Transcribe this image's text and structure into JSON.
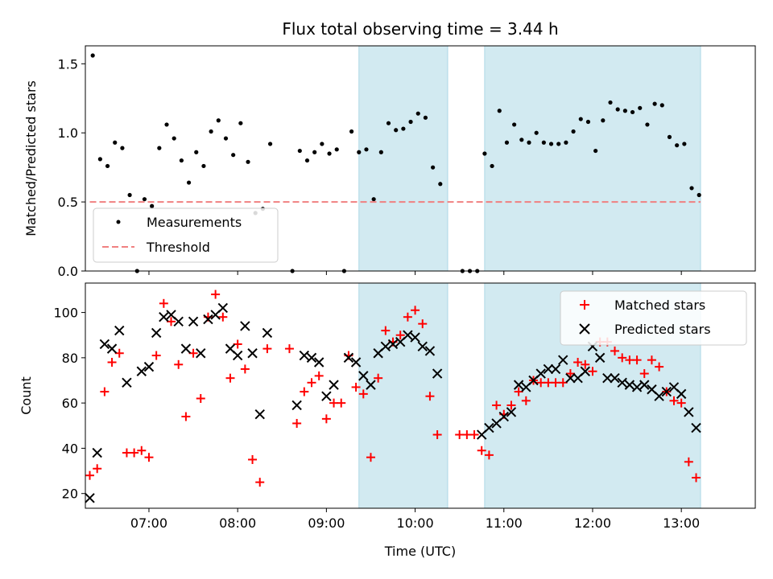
{
  "chart_data": [
    {
      "type": "scatter",
      "title": "Flux total observing time = 3.44 h",
      "ylabel": "Matched/Predicted stars",
      "ylim": [
        0,
        1.63
      ],
      "yticks": [
        "0.0",
        "0.5",
        "1.0",
        "1.5"
      ],
      "xlim": [
        "06:17",
        "13:50"
      ],
      "xticks": [
        "07:00",
        "08:00",
        "09:00",
        "10:00",
        "11:00",
        "12:00",
        "13:00"
      ],
      "shaded_intervals": [
        [
          "09:22",
          "10:22"
        ],
        [
          "10:47",
          "13:13"
        ]
      ],
      "shade_color": "#add8e6",
      "legend_position": "lower-left",
      "series": [
        {
          "name": "Measurements",
          "color": "#000000",
          "marker": "dot",
          "points": [
            [
              "06:22",
              1.56
            ],
            [
              "06:27",
              0.81
            ],
            [
              "06:32",
              0.76
            ],
            [
              "06:37",
              0.93
            ],
            [
              "06:42",
              0.89
            ],
            [
              "06:47",
              0.55
            ],
            [
              "06:52",
              0.0
            ],
            [
              "06:57",
              0.52
            ],
            [
              "07:02",
              0.47
            ],
            [
              "07:07",
              0.89
            ],
            [
              "07:12",
              1.06
            ],
            [
              "07:17",
              0.96
            ],
            [
              "07:22",
              0.8
            ],
            [
              "07:27",
              0.64
            ],
            [
              "07:32",
              0.86
            ],
            [
              "07:37",
              0.76
            ],
            [
              "07:42",
              1.01
            ],
            [
              "07:47",
              1.09
            ],
            [
              "07:52",
              0.96
            ],
            [
              "07:57",
              0.84
            ],
            [
              "08:02",
              1.07
            ],
            [
              "08:07",
              0.79
            ],
            [
              "08:12",
              0.42
            ],
            [
              "08:17",
              0.45
            ],
            [
              "08:22",
              0.92
            ],
            [
              "08:37",
              0.0
            ],
            [
              "08:42",
              0.87
            ],
            [
              "08:47",
              0.8
            ],
            [
              "08:52",
              0.86
            ],
            [
              "08:57",
              0.92
            ],
            [
              "09:02",
              0.85
            ],
            [
              "09:07",
              0.88
            ],
            [
              "09:12",
              0.0
            ],
            [
              "09:17",
              1.01
            ],
            [
              "09:22",
              0.86
            ],
            [
              "09:27",
              0.88
            ],
            [
              "09:32",
              0.52
            ],
            [
              "09:37",
              0.86
            ],
            [
              "09:42",
              1.07
            ],
            [
              "09:47",
              1.02
            ],
            [
              "09:52",
              1.03
            ],
            [
              "09:57",
              1.08
            ],
            [
              "10:02",
              1.14
            ],
            [
              "10:07",
              1.11
            ],
            [
              "10:12",
              0.75
            ],
            [
              "10:17",
              0.63
            ],
            [
              "10:32",
              0.0
            ],
            [
              "10:37",
              0.0
            ],
            [
              "10:42",
              0.0
            ],
            [
              "10:47",
              0.85
            ],
            [
              "10:52",
              0.76
            ],
            [
              "10:57",
              1.16
            ],
            [
              "11:02",
              0.93
            ],
            [
              "11:07",
              1.06
            ],
            [
              "11:12",
              0.95
            ],
            [
              "11:17",
              0.93
            ],
            [
              "11:22",
              1.0
            ],
            [
              "11:27",
              0.93
            ],
            [
              "11:32",
              0.92
            ],
            [
              "11:37",
              0.92
            ],
            [
              "11:42",
              0.93
            ],
            [
              "11:47",
              1.01
            ],
            [
              "11:52",
              1.1
            ],
            [
              "11:57",
              1.08
            ],
            [
              "12:02",
              0.87
            ],
            [
              "12:07",
              1.09
            ],
            [
              "12:12",
              1.22
            ],
            [
              "12:17",
              1.17
            ],
            [
              "12:22",
              1.16
            ],
            [
              "12:27",
              1.15
            ],
            [
              "12:32",
              1.18
            ],
            [
              "12:37",
              1.06
            ],
            [
              "12:42",
              1.21
            ],
            [
              "12:47",
              1.2
            ],
            [
              "12:52",
              0.97
            ],
            [
              "12:57",
              0.91
            ],
            [
              "13:02",
              0.92
            ],
            [
              "13:07",
              0.6
            ],
            [
              "13:12",
              0.55
            ]
          ]
        },
        {
          "name": "Threshold",
          "color": "#f08080",
          "style": "dashed",
          "points": [
            [
              "06:20",
              0.5
            ],
            [
              "13:13",
              0.5
            ]
          ]
        }
      ]
    },
    {
      "type": "scatter",
      "xlabel": "Time (UTC)",
      "ylabel": "Count",
      "ylim": [
        13.5,
        113
      ],
      "yticks": [
        "20",
        "40",
        "60",
        "80",
        "100"
      ],
      "xlim": [
        "06:17",
        "13:50"
      ],
      "xticks": [
        "07:00",
        "08:00",
        "09:00",
        "10:00",
        "11:00",
        "12:00",
        "13:00"
      ],
      "shaded_intervals": [
        [
          "09:22",
          "10:22"
        ],
        [
          "10:47",
          "13:13"
        ]
      ],
      "shade_color": "#add8e6",
      "legend_position": "upper-right",
      "series": [
        {
          "name": "Matched stars",
          "color": "#ff0000",
          "marker": "plus",
          "points": [
            [
              "06:20",
              28
            ],
            [
              "06:25",
              31
            ],
            [
              "06:30",
              65
            ],
            [
              "06:35",
              78
            ],
            [
              "06:40",
              82
            ],
            [
              "06:45",
              38
            ],
            [
              "06:50",
              38
            ],
            [
              "06:55",
              39
            ],
            [
              "07:00",
              36
            ],
            [
              "07:05",
              81
            ],
            [
              "07:10",
              104
            ],
            [
              "07:15",
              96
            ],
            [
              "07:20",
              77
            ],
            [
              "07:25",
              54
            ],
            [
              "07:30",
              82
            ],
            [
              "07:35",
              62
            ],
            [
              "07:40",
              98
            ],
            [
              "07:45",
              108
            ],
            [
              "07:50",
              98
            ],
            [
              "07:55",
              71
            ],
            [
              "08:00",
              86
            ],
            [
              "08:05",
              75
            ],
            [
              "08:10",
              35
            ],
            [
              "08:15",
              25
            ],
            [
              "08:20",
              84
            ],
            [
              "08:35",
              84
            ],
            [
              "08:40",
              51
            ],
            [
              "08:45",
              65
            ],
            [
              "08:50",
              69
            ],
            [
              "08:55",
              72
            ],
            [
              "09:00",
              53
            ],
            [
              "09:05",
              60
            ],
            [
              "09:10",
              60
            ],
            [
              "09:15",
              81
            ],
            [
              "09:20",
              67
            ],
            [
              "09:25",
              64
            ],
            [
              "09:30",
              36
            ],
            [
              "09:35",
              71
            ],
            [
              "09:40",
              92
            ],
            [
              "09:45",
              87
            ],
            [
              "09:50",
              90
            ],
            [
              "09:55",
              98
            ],
            [
              "10:00",
              101
            ],
            [
              "10:05",
              95
            ],
            [
              "10:10",
              63
            ],
            [
              "10:15",
              46
            ],
            [
              "10:30",
              46
            ],
            [
              "10:35",
              46
            ],
            [
              "10:40",
              46
            ],
            [
              "10:45",
              39
            ],
            [
              "10:50",
              37
            ],
            [
              "10:55",
              59
            ],
            [
              "11:00",
              55
            ],
            [
              "11:05",
              59
            ],
            [
              "11:10",
              65
            ],
            [
              "11:15",
              61
            ],
            [
              "11:20",
              70
            ],
            [
              "11:25",
              69
            ],
            [
              "11:30",
              69
            ],
            [
              "11:35",
              69
            ],
            [
              "11:40",
              69
            ],
            [
              "11:45",
              73
            ],
            [
              "11:50",
              78
            ],
            [
              "11:55",
              77
            ],
            [
              "12:00",
              74
            ],
            [
              "12:05",
              87
            ],
            [
              "12:10",
              87
            ],
            [
              "12:15",
              83
            ],
            [
              "12:20",
              80
            ],
            [
              "12:25",
              79
            ],
            [
              "12:30",
              79
            ],
            [
              "12:35",
              73
            ],
            [
              "12:40",
              79
            ],
            [
              "12:45",
              76
            ],
            [
              "12:50",
              65
            ],
            [
              "12:55",
              61
            ],
            [
              "13:00",
              60
            ],
            [
              "13:05",
              34
            ],
            [
              "13:10",
              27
            ]
          ]
        },
        {
          "name": "Predicted stars",
          "color": "#000000",
          "marker": "x",
          "points": [
            [
              "06:20",
              18
            ],
            [
              "06:25",
              38
            ],
            [
              "06:30",
              86
            ],
            [
              "06:35",
              84
            ],
            [
              "06:40",
              92
            ],
            [
              "06:45",
              69
            ],
            [
              "06:55",
              74
            ],
            [
              "07:00",
              76
            ],
            [
              "07:05",
              91
            ],
            [
              "07:10",
              98
            ],
            [
              "07:15",
              99
            ],
            [
              "07:20",
              96
            ],
            [
              "07:25",
              84
            ],
            [
              "07:30",
              96
            ],
            [
              "07:35",
              82
            ],
            [
              "07:40",
              97
            ],
            [
              "07:45",
              99
            ],
            [
              "07:50",
              102
            ],
            [
              "07:55",
              84
            ],
            [
              "08:00",
              81
            ],
            [
              "08:05",
              94
            ],
            [
              "08:10",
              82
            ],
            [
              "08:15",
              55
            ],
            [
              "08:20",
              91
            ],
            [
              "08:40",
              59
            ],
            [
              "08:45",
              81
            ],
            [
              "08:50",
              80
            ],
            [
              "08:55",
              78
            ],
            [
              "09:00",
              63
            ],
            [
              "09:05",
              68
            ],
            [
              "09:15",
              80
            ],
            [
              "09:20",
              78
            ],
            [
              "09:25",
              72
            ],
            [
              "09:30",
              68
            ],
            [
              "09:35",
              82
            ],
            [
              "09:40",
              85
            ],
            [
              "09:45",
              86
            ],
            [
              "09:50",
              87
            ],
            [
              "09:55",
              90
            ],
            [
              "10:00",
              89
            ],
            [
              "10:05",
              85
            ],
            [
              "10:10",
              83
            ],
            [
              "10:15",
              73
            ],
            [
              "10:45",
              46
            ],
            [
              "10:50",
              49
            ],
            [
              "10:55",
              51
            ],
            [
              "11:00",
              54
            ],
            [
              "11:05",
              56
            ],
            [
              "11:10",
              68
            ],
            [
              "11:15",
              67
            ],
            [
              "11:20",
              70
            ],
            [
              "11:25",
              73
            ],
            [
              "11:30",
              75
            ],
            [
              "11:35",
              75
            ],
            [
              "11:40",
              79
            ],
            [
              "11:45",
              71
            ],
            [
              "11:50",
              71
            ],
            [
              "11:55",
              74
            ],
            [
              "12:00",
              85
            ],
            [
              "12:05",
              80
            ],
            [
              "12:10",
              71
            ],
            [
              "12:15",
              71
            ],
            [
              "12:20",
              69
            ],
            [
              "12:25",
              68
            ],
            [
              "12:30",
              67
            ],
            [
              "12:35",
              68
            ],
            [
              "12:40",
              66
            ],
            [
              "12:45",
              63
            ],
            [
              "12:50",
              65
            ],
            [
              "12:55",
              67
            ],
            [
              "13:00",
              64
            ],
            [
              "13:05",
              56
            ],
            [
              "13:10",
              49
            ]
          ]
        }
      ]
    }
  ]
}
